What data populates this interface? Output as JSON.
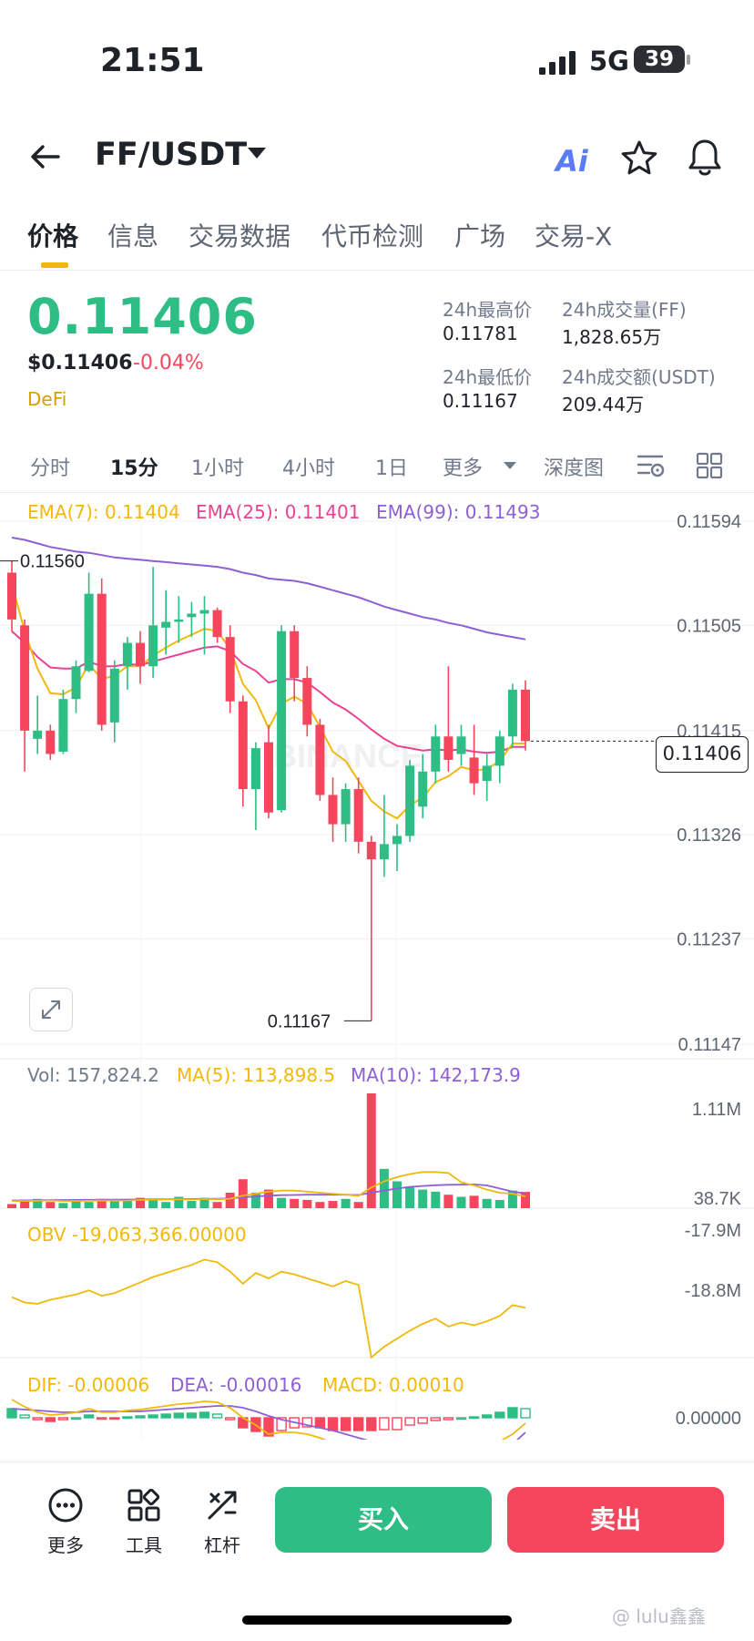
{
  "status_bar": {
    "time": "21:51",
    "network": "5G",
    "battery": "39"
  },
  "header": {
    "pair": "FF/USDT",
    "ai_label": "Ai",
    "icons": [
      "back-arrow-icon",
      "caret-down-icon",
      "ai-icon",
      "star-icon",
      "bell-icon"
    ]
  },
  "tabs": [
    {
      "label": "价格",
      "active": true
    },
    {
      "label": "信息"
    },
    {
      "label": "交易数据"
    },
    {
      "label": "代币检测"
    },
    {
      "label": "广场"
    },
    {
      "label": "交易-X"
    }
  ],
  "price": {
    "last": "0.11406",
    "usd": "$0.11406",
    "change": "-0.04%",
    "tag": "DeFi",
    "color_up": "#2ebd85",
    "color_down": "#f6465d"
  },
  "stats": {
    "high_label": "24h最高价",
    "high_value": "0.11781",
    "vol_label": "24h成交量(FF)",
    "vol_value": "1,828.65万",
    "low_label": "24h最低价",
    "low_value": "0.11167",
    "amt_label": "24h成交额(USDT)",
    "amt_value": "209.44万"
  },
  "intervals": [
    "分时",
    "15分",
    "1小时",
    "4小时",
    "1日",
    "更多",
    "深度图"
  ],
  "active_interval": "15分",
  "legends": {
    "ema7": "EMA(7): 0.11404",
    "ema25": "EMA(25): 0.11401",
    "ema99": "EMA(99): 0.11493",
    "vol": "Vol: 157,824.2",
    "ma5": "MA(5): 113,898.5",
    "ma10": "MA(10): 142,173.9",
    "obv": "OBV -19,063,366.00000",
    "dif": "DIF: -0.00006",
    "dea": "DEA: -0.00016",
    "macd": "MACD: 0.00010"
  },
  "axis": {
    "price_ticks": [
      "0.11594",
      "0.11505",
      "0.11415",
      "0.11326",
      "0.11237",
      "0.11147"
    ],
    "price_tag": "0.11406",
    "hi_marker": "0.11560",
    "lo_marker": "0.11167",
    "vol_ticks": [
      "1.11M",
      "38.7K"
    ],
    "obv_ticks": [
      "-17.9M",
      "-18.8M"
    ],
    "macd_ticks": [
      "0.00000"
    ]
  },
  "watermark": "BINANCE",
  "bottom_bar": {
    "more": "更多",
    "tools": "工具",
    "leverage": "杠杆",
    "buy": "买入",
    "sell": "卖出"
  },
  "credit": "@ lulu鑫鑫",
  "chart_data": {
    "type": "candlestick",
    "interval": "15分",
    "y_range": [
      0.11147,
      0.11594
    ],
    "colors": {
      "up": "#2ebd85",
      "down": "#f6465d",
      "ema7": "#f0b90b",
      "ema25": "#e84393",
      "ema99": "#8e5fd6"
    },
    "candles": [
      {
        "o": 0.1155,
        "h": 0.1156,
        "l": 0.115,
        "c": 0.1151
      },
      {
        "o": 0.11505,
        "h": 0.1151,
        "l": 0.1138,
        "c": 0.11415
      },
      {
        "o": 0.11408,
        "h": 0.11445,
        "l": 0.11395,
        "c": 0.11415
      },
      {
        "o": 0.11415,
        "h": 0.1142,
        "l": 0.1139,
        "c": 0.11395
      },
      {
        "o": 0.11397,
        "h": 0.1145,
        "l": 0.11395,
        "c": 0.11442
      },
      {
        "o": 0.11442,
        "h": 0.11475,
        "l": 0.1143,
        "c": 0.1147
      },
      {
        "o": 0.11466,
        "h": 0.1155,
        "l": 0.11465,
        "c": 0.11532
      },
      {
        "o": 0.11532,
        "h": 0.11545,
        "l": 0.11415,
        "c": 0.1142
      },
      {
        "o": 0.11422,
        "h": 0.11475,
        "l": 0.11405,
        "c": 0.11468
      },
      {
        "o": 0.1147,
        "h": 0.11495,
        "l": 0.1145,
        "c": 0.1149
      },
      {
        "o": 0.1149,
        "h": 0.115,
        "l": 0.11455,
        "c": 0.1147
      },
      {
        "o": 0.1147,
        "h": 0.11555,
        "l": 0.1146,
        "c": 0.11505
      },
      {
        "o": 0.11503,
        "h": 0.11535,
        "l": 0.1148,
        "c": 0.11508
      },
      {
        "o": 0.11508,
        "h": 0.1153,
        "l": 0.1149,
        "c": 0.1151
      },
      {
        "o": 0.11512,
        "h": 0.11525,
        "l": 0.11495,
        "c": 0.11515
      },
      {
        "o": 0.11515,
        "h": 0.1153,
        "l": 0.1148,
        "c": 0.11518
      },
      {
        "o": 0.11518,
        "h": 0.1152,
        "l": 0.1149,
        "c": 0.11495
      },
      {
        "o": 0.11495,
        "h": 0.11505,
        "l": 0.1143,
        "c": 0.1144
      },
      {
        "o": 0.1144,
        "h": 0.11445,
        "l": 0.1135,
        "c": 0.11365
      },
      {
        "o": 0.11365,
        "h": 0.11405,
        "l": 0.1133,
        "c": 0.114
      },
      {
        "o": 0.11405,
        "h": 0.1142,
        "l": 0.1134,
        "c": 0.11345
      },
      {
        "o": 0.11347,
        "h": 0.11505,
        "l": 0.11345,
        "c": 0.115
      },
      {
        "o": 0.115,
        "h": 0.11505,
        "l": 0.1144,
        "c": 0.1146
      },
      {
        "o": 0.1146,
        "h": 0.1147,
        "l": 0.1141,
        "c": 0.1142
      },
      {
        "o": 0.1142,
        "h": 0.11425,
        "l": 0.11355,
        "c": 0.1136
      },
      {
        "o": 0.1136,
        "h": 0.11375,
        "l": 0.1132,
        "c": 0.11335
      },
      {
        "o": 0.11335,
        "h": 0.1137,
        "l": 0.1132,
        "c": 0.11365
      },
      {
        "o": 0.11365,
        "h": 0.11375,
        "l": 0.1131,
        "c": 0.1132
      },
      {
        "o": 0.1132,
        "h": 0.11325,
        "l": 0.11167,
        "c": 0.11305
      },
      {
        "o": 0.11305,
        "h": 0.1136,
        "l": 0.1129,
        "c": 0.11318
      },
      {
        "o": 0.11318,
        "h": 0.11335,
        "l": 0.11295,
        "c": 0.11325
      },
      {
        "o": 0.11325,
        "h": 0.1139,
        "l": 0.1132,
        "c": 0.11385
      },
      {
        "o": 0.1135,
        "h": 0.11395,
        "l": 0.1134,
        "c": 0.1138
      },
      {
        "o": 0.1138,
        "h": 0.1142,
        "l": 0.1137,
        "c": 0.1141
      },
      {
        "o": 0.1141,
        "h": 0.1147,
        "l": 0.1138,
        "c": 0.1139
      },
      {
        "o": 0.11395,
        "h": 0.1142,
        "l": 0.11385,
        "c": 0.1141
      },
      {
        "o": 0.11392,
        "h": 0.1142,
        "l": 0.1136,
        "c": 0.1137
      },
      {
        "o": 0.11372,
        "h": 0.11395,
        "l": 0.11355,
        "c": 0.11385
      },
      {
        "o": 0.11385,
        "h": 0.11415,
        "l": 0.1137,
        "c": 0.1141
      },
      {
        "o": 0.1141,
        "h": 0.11455,
        "l": 0.114,
        "c": 0.1145
      },
      {
        "o": 0.1145,
        "h": 0.11458,
        "l": 0.11398,
        "c": 0.11406
      }
    ],
    "ema7": [
      0.1154,
      0.115,
      0.11468,
      0.11447,
      0.11446,
      0.11452,
      0.11472,
      0.11459,
      0.11462,
      0.1147,
      0.1147,
      0.11479,
      0.11486,
      0.11492,
      0.11497,
      0.11502,
      0.115,
      0.11485,
      0.11455,
      0.11441,
      0.11417,
      0.11438,
      0.11444,
      0.11438,
      0.11418,
      0.11397,
      0.11389,
      0.11372,
      0.11355,
      0.11346,
      0.1134,
      0.11351,
      0.11358,
      0.11371,
      0.11376,
      0.11384,
      0.11381,
      0.11382,
      0.11389,
      0.11404,
      0.11404
    ],
    "ema25": [
      0.115,
      0.1149,
      0.11478,
      0.11469,
      0.11468,
      0.11468,
      0.11474,
      0.1147,
      0.1147,
      0.11472,
      0.11471,
      0.11474,
      0.11477,
      0.1148,
      0.11483,
      0.11486,
      0.11487,
      0.11483,
      0.11472,
      0.11466,
      0.11456,
      0.11459,
      0.11459,
      0.11456,
      0.11448,
      0.11439,
      0.11433,
      0.11425,
      0.11416,
      0.11408,
      0.11402,
      0.114,
      0.11398,
      0.11399,
      0.11398,
      0.11399,
      0.11397,
      0.11396,
      0.11397,
      0.11401,
      0.11401
    ],
    "ema99": [
      0.1158,
      0.11578,
      0.11575,
      0.11572,
      0.1157,
      0.11568,
      0.11567,
      0.11565,
      0.11563,
      0.11562,
      0.11561,
      0.1156,
      0.11559,
      0.11558,
      0.11557,
      0.11556,
      0.11555,
      0.11553,
      0.1155,
      0.11548,
      0.11545,
      0.11544,
      0.11543,
      0.11541,
      0.11538,
      0.11535,
      0.11532,
      0.11529,
      0.11525,
      0.11521,
      0.11518,
      0.11515,
      0.11512,
      0.1151,
      0.11507,
      0.11505,
      0.11502,
      0.11499,
      0.11497,
      0.11495,
      0.11493
    ],
    "volume": [
      40,
      80,
      90,
      60,
      50,
      70,
      60,
      90,
      70,
      80,
      100,
      80,
      60,
      110,
      70,
      100,
      60,
      150,
      280,
      150,
      180,
      100,
      90,
      80,
      60,
      70,
      90,
      60,
      1110,
      380,
      260,
      200,
      180,
      160,
      130,
      110,
      120,
      90,
      80,
      170,
      157.8
    ],
    "volume_range": [
      0,
      1110
    ],
    "ma5_vol": [
      70,
      70,
      72,
      74,
      70,
      70,
      72,
      74,
      72,
      74,
      80,
      82,
      84,
      86,
      84,
      88,
      86,
      92,
      122,
      140,
      160,
      170,
      170,
      160,
      150,
      140,
      130,
      120,
      200,
      260,
      300,
      330,
      350,
      350,
      340,
      250,
      220,
      180,
      150,
      140,
      113.9
    ],
    "ma10_vol": [
      75,
      76,
      77,
      78,
      79,
      80,
      81,
      82,
      83,
      84,
      85,
      86,
      87,
      88,
      89,
      90,
      91,
      94,
      106,
      114,
      122,
      126,
      128,
      130,
      130,
      130,
      130,
      128,
      150,
      170,
      190,
      205,
      215,
      222,
      226,
      228,
      230,
      220,
      190,
      160,
      142.2
    ],
    "obv": [
      -18.9,
      -18.98,
      -19.0,
      -18.94,
      -18.9,
      -18.86,
      -18.8,
      -18.88,
      -18.84,
      -18.76,
      -18.68,
      -18.6,
      -18.54,
      -18.48,
      -18.42,
      -18.34,
      -18.38,
      -18.52,
      -18.7,
      -18.54,
      -18.62,
      -18.52,
      -18.56,
      -18.62,
      -18.68,
      -18.74,
      -18.66,
      -18.72,
      -19.8,
      -19.64,
      -19.52,
      -19.4,
      -19.3,
      -19.22,
      -19.34,
      -19.28,
      -19.32,
      -19.26,
      -19.18,
      -19.02,
      -19.06
    ],
    "obv_range": [
      -19.83,
      -17.9
    ],
    "dif": [
      0.0002,
      0.00012,
      6e-05,
      3e-05,
      4e-05,
      6e-05,
      0.0001,
      6e-05,
      6e-05,
      8e-05,
      9e-05,
      0.00011,
      0.00013,
      0.00015,
      0.00016,
      0.00018,
      0.00017,
      0.00011,
      0.0,
      -8e-05,
      -0.00018,
      -0.00016,
      -0.00016,
      -0.00018,
      -0.00022,
      -0.00028,
      -0.00032,
      -0.00036,
      -0.0004,
      -0.00042,
      -0.00045,
      -0.00042,
      -0.00042,
      -0.0004,
      -0.00039,
      -0.00036,
      -0.00034,
      -0.00031,
      -0.00026,
      -0.00018,
      -6e-05
    ],
    "dea": [
      0.0001,
      9e-05,
      8e-05,
      7e-05,
      6e-05,
      6e-05,
      7e-05,
      7e-05,
      7e-05,
      7e-05,
      7e-05,
      8e-05,
      9e-05,
      0.0001,
      0.00011,
      0.00012,
      0.00013,
      0.00013,
      0.00011,
      7e-05,
      2e-05,
      -2e-05,
      -5e-05,
      -8e-05,
      -0.00011,
      -0.00014,
      -0.00018,
      -0.00022,
      -0.00026,
      -0.00029,
      -0.00032,
      -0.00034,
      -0.00036,
      -0.00037,
      -0.00037,
      -0.00036,
      -0.00035,
      -0.00034,
      -0.00032,
      -0.00029,
      -0.00016
    ]
  }
}
